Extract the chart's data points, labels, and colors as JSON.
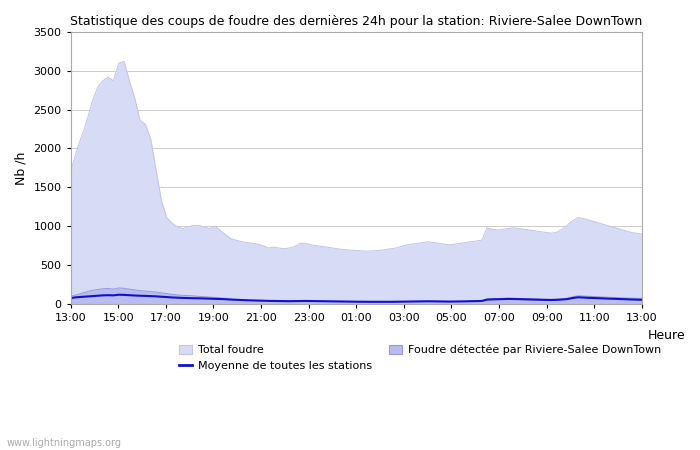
{
  "title": "Statistique des coups de foudre des dernières 24h pour la station: Riviere-Salee DownTown",
  "ylabel": "Nb /h",
  "xlabel_heure": "Heure",
  "ylim": [
    0,
    3500
  ],
  "yticks": [
    0,
    500,
    1000,
    1500,
    2000,
    2500,
    3000,
    3500
  ],
  "x_labels": [
    "13:00",
    "15:00",
    "17:00",
    "19:00",
    "21:00",
    "23:00",
    "01:00",
    "03:00",
    "05:00",
    "07:00",
    "09:00",
    "11:00",
    "13:00"
  ],
  "background_color": "#ffffff",
  "plot_bg_color": "#ffffff",
  "grid_color": "#cccccc",
  "total_foudre_color": "#d8dbf5",
  "total_foudre_edge": "#c0c4e8",
  "detected_color": "#b8bcf0",
  "detected_edge": "#9898d8",
  "moyenne_color": "#1111cc",
  "watermark": "www.lightningmaps.org",
  "legend_total": "Total foudre",
  "legend_moyenne": "Moyenne de toutes les stations",
  "legend_detected": "Foudre détectée par Riviere-Salee DownTown",
  "total_foudre": [
    1700,
    1950,
    2150,
    2350,
    2600,
    2780,
    2870,
    2920,
    2870,
    3100,
    3120,
    2870,
    2650,
    2360,
    2310,
    2120,
    1720,
    1330,
    1110,
    1040,
    990,
    970,
    990,
    1010,
    1010,
    990,
    970,
    1000,
    950,
    890,
    840,
    820,
    800,
    790,
    780,
    770,
    750,
    720,
    730,
    720,
    710,
    720,
    740,
    780,
    780,
    760,
    750,
    740,
    730,
    720,
    710,
    700,
    695,
    690,
    685,
    680,
    680,
    685,
    690,
    700,
    710,
    720,
    740,
    760,
    770,
    780,
    790,
    800,
    790,
    780,
    770,
    760,
    770,
    780,
    790,
    800,
    810,
    820,
    980,
    960,
    950,
    960,
    970,
    980,
    970,
    960,
    950,
    940,
    930,
    920,
    910,
    920,
    960,
    1010,
    1070,
    1110,
    1100,
    1080,
    1060,
    1040,
    1020,
    1000,
    980,
    960,
    940,
    920,
    910,
    900
  ],
  "detected_foudre": [
    100,
    115,
    135,
    155,
    175,
    185,
    195,
    200,
    190,
    205,
    200,
    190,
    180,
    170,
    165,
    158,
    152,
    142,
    132,
    122,
    115,
    110,
    107,
    103,
    97,
    93,
    88,
    83,
    78,
    72,
    62,
    57,
    52,
    47,
    44,
    42,
    40,
    37,
    35,
    33,
    32,
    31,
    33,
    36,
    37,
    35,
    33,
    32,
    30,
    29,
    28,
    27,
    26,
    25,
    25,
    24,
    24,
    24,
    24,
    24,
    25,
    26,
    27,
    28,
    29,
    30,
    31,
    32,
    31,
    30,
    29,
    28,
    29,
    30,
    31,
    33,
    35,
    37,
    65,
    68,
    70,
    72,
    75,
    73,
    71,
    69,
    67,
    65,
    63,
    61,
    59,
    62,
    67,
    73,
    90,
    105,
    102,
    98,
    95,
    92,
    88,
    85,
    82,
    79,
    77,
    74,
    72,
    70
  ],
  "moyenne": [
    75,
    85,
    90,
    95,
    100,
    105,
    110,
    112,
    110,
    118,
    116,
    112,
    108,
    105,
    103,
    100,
    97,
    92,
    88,
    83,
    80,
    77,
    75,
    73,
    72,
    70,
    68,
    65,
    63,
    60,
    56,
    53,
    50,
    47,
    45,
    43,
    41,
    39,
    38,
    37,
    36,
    35,
    36,
    37,
    38,
    37,
    36,
    35,
    34,
    33,
    32,
    31,
    30,
    29,
    28,
    28,
    27,
    27,
    27,
    27,
    27,
    28,
    29,
    30,
    31,
    32,
    33,
    34,
    33,
    32,
    31,
    30,
    31,
    32,
    33,
    35,
    36,
    38,
    55,
    58,
    60,
    62,
    64,
    63,
    61,
    59,
    57,
    55,
    53,
    51,
    50,
    52,
    56,
    62,
    75,
    85,
    82,
    78,
    76,
    73,
    70,
    67,
    65,
    62,
    60,
    57,
    55,
    53
  ]
}
